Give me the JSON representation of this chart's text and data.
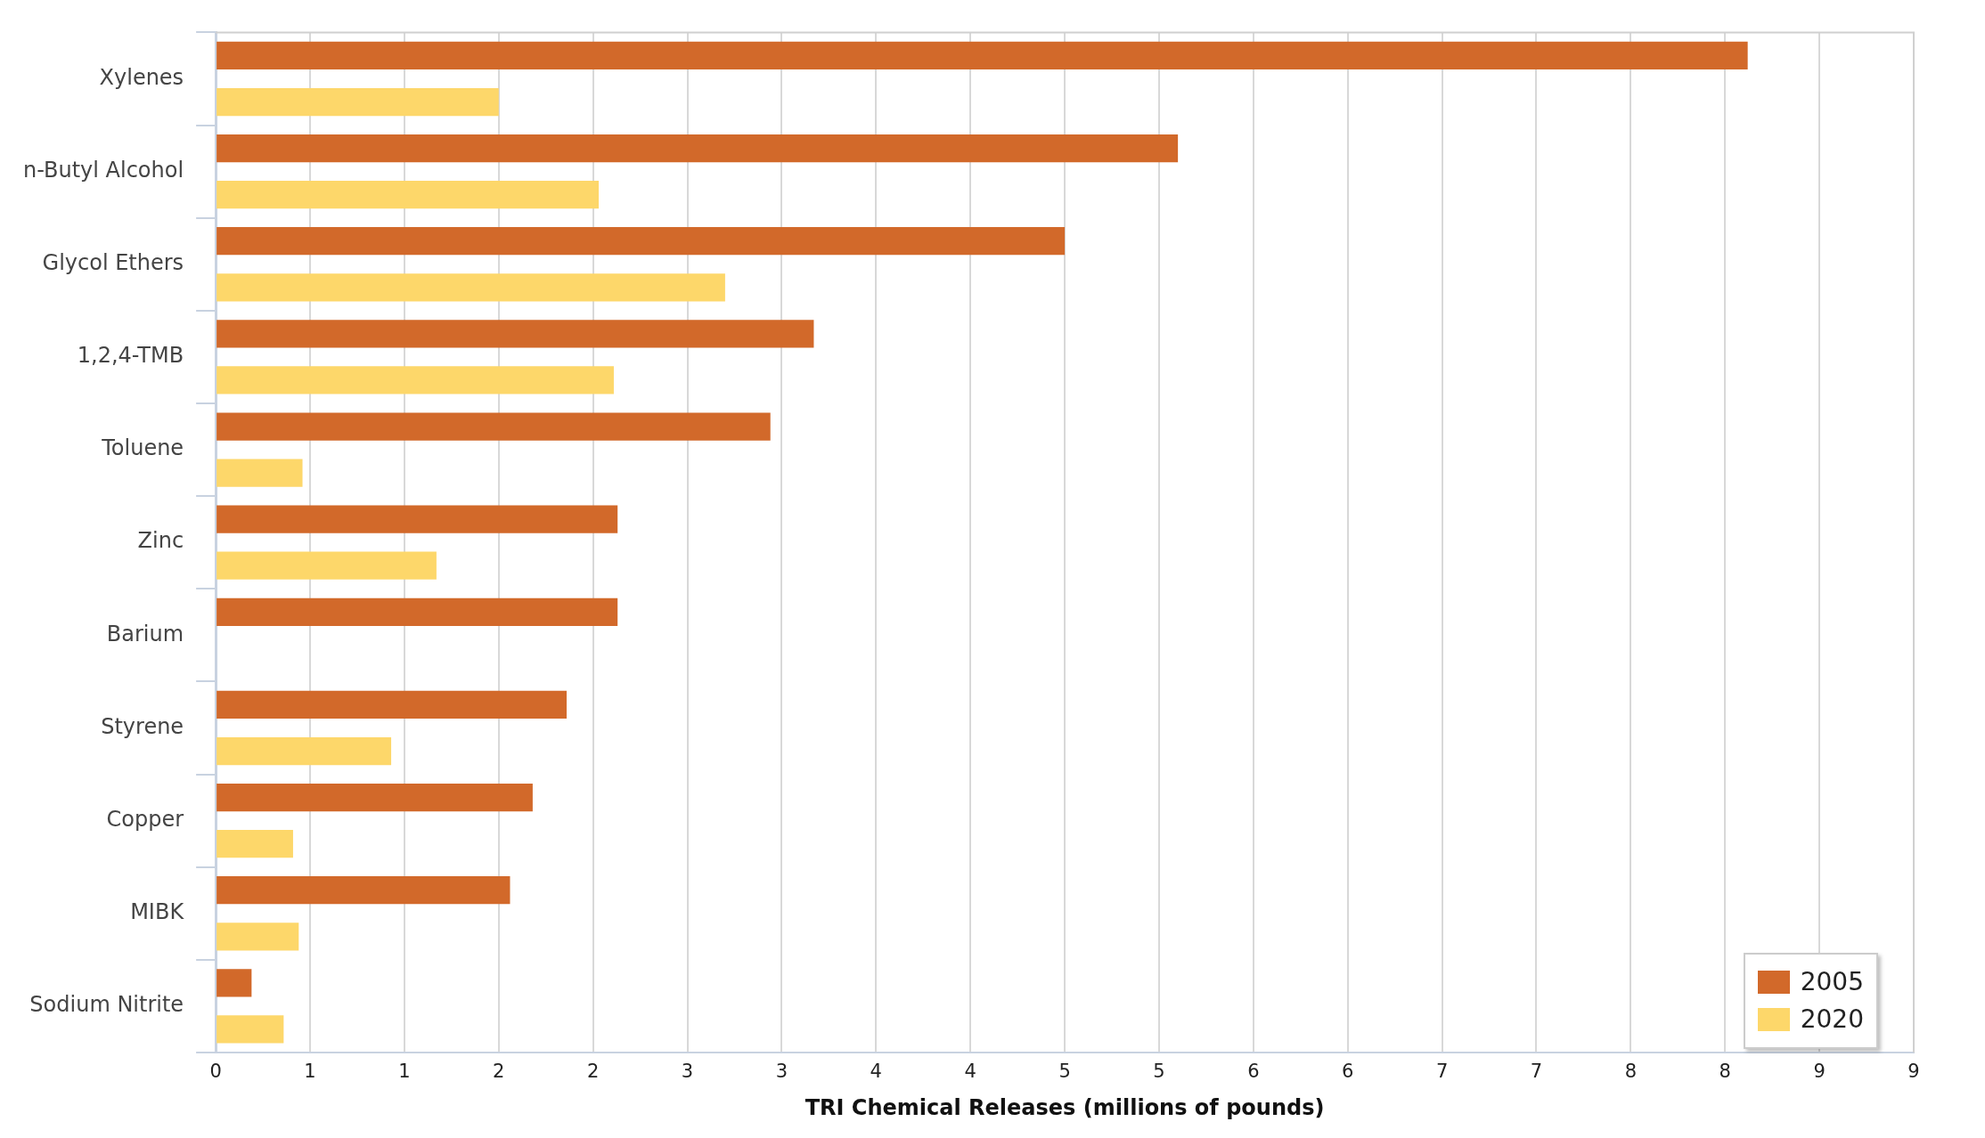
{
  "chart_data": {
    "type": "bar",
    "orientation": "horizontal",
    "xlabel": "TRI Chemical Releases (millions of pounds)",
    "categories": [
      "Xylenes",
      "n-Butyl Alcohol",
      "Glycol Ethers",
      "1,2,4-TMB",
      "Toluene",
      "Zinc",
      "Barium",
      "Styrene",
      "Copper",
      "MIBK",
      "Sodium Nitrite"
    ],
    "series": [
      {
        "name": "2005",
        "color": "#d2692a",
        "values": [
          8.12,
          5.1,
          4.5,
          3.17,
          2.94,
          2.13,
          2.13,
          1.86,
          1.68,
          1.56,
          0.19
        ]
      },
      {
        "name": "2020",
        "color": "#fdd76a",
        "values": [
          1.5,
          2.03,
          2.7,
          2.11,
          0.46,
          1.17,
          0,
          0.93,
          0.41,
          0.44,
          0.36
        ]
      }
    ],
    "xlim": [
      0,
      9
    ],
    "xticks": [
      0,
      {
        "value": 0.5,
        "label": "1"
      },
      {
        "value": 1,
        "label": "1"
      },
      {
        "value": 1.5,
        "label": "2"
      },
      {
        "value": 2,
        "label": "2"
      },
      {
        "value": 2.5,
        "label": "3"
      },
      {
        "value": 3,
        "label": "3"
      },
      {
        "value": 3.5,
        "label": "4"
      },
      {
        "value": 4,
        "label": "4"
      },
      {
        "value": 4.5,
        "label": "5"
      },
      {
        "value": 5,
        "label": "5"
      },
      {
        "value": 5.5,
        "label": "6"
      },
      {
        "value": 6,
        "label": "6"
      },
      {
        "value": 6.5,
        "label": "7"
      },
      {
        "value": 7,
        "label": "7"
      },
      {
        "value": 7.5,
        "label": "8"
      },
      {
        "value": 8,
        "label": "8"
      },
      {
        "value": 8.5,
        "label": "9"
      },
      {
        "value": 9,
        "label": "9"
      }
    ],
    "grid": "x",
    "legend": "bottom right"
  }
}
